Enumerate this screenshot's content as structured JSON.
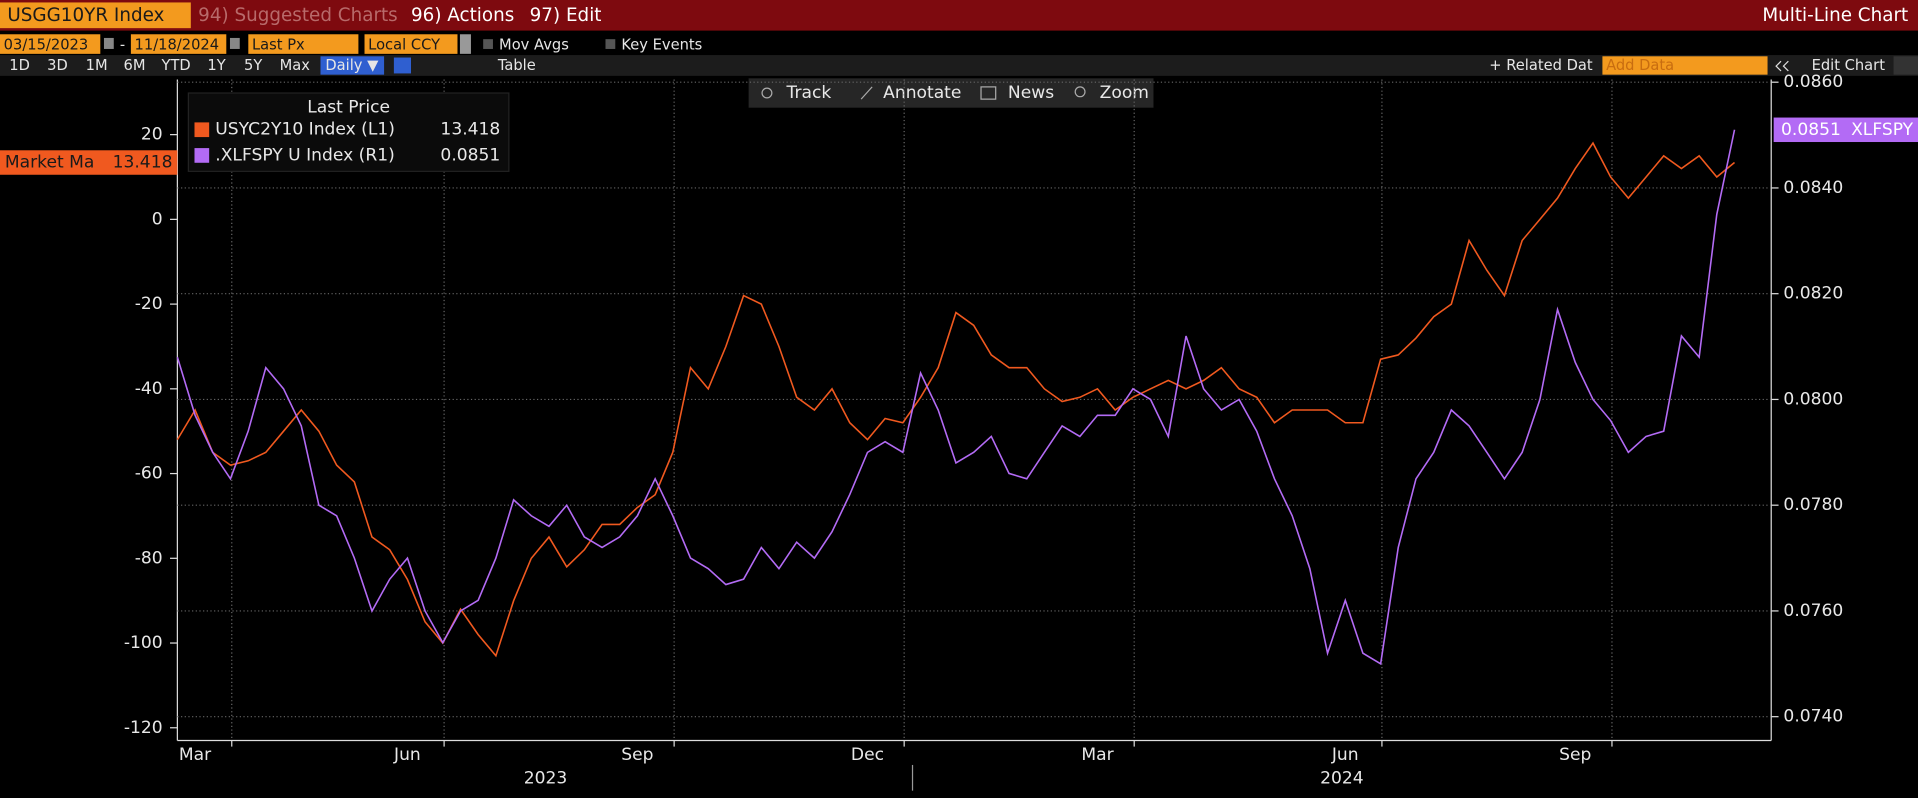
{
  "ui": {
    "top_bar": {
      "security": "USGG10YR Index",
      "menus": [
        "94) Suggested Charts",
        "96) Actions",
        "97) Edit"
      ],
      "view": "Multi-Line Chart"
    },
    "settings_bar": {
      "start_date": "03/15/2023",
      "date_separator": "-",
      "end_date": "11/18/2024",
      "field": "Last Px",
      "currency": "Local CCY",
      "toggles": [
        "Mov Avgs",
        "Key Events"
      ]
    },
    "range_bar": {
      "ranges": [
        "1D",
        "3D",
        "1M",
        "6M",
        "YTD",
        "1Y",
        "5Y",
        "Max"
      ],
      "frequency": "Daily ▼",
      "table": "Table",
      "related": "+ Related Dat",
      "add_data": "Add Data",
      "edit_chart": "Edit Chart"
    },
    "toolbar": [
      "Track",
      "Annotate",
      "News",
      "Zoom"
    ]
  },
  "chart_data": {
    "type": "line",
    "legend_title": "Last Price",
    "legend": "upper left",
    "grid": true,
    "categories": [
      null,
      "Mar",
      null,
      null,
      null,
      null,
      null,
      null,
      null,
      null,
      null,
      null,
      null,
      "Jun",
      null,
      null,
      null,
      null,
      null,
      null,
      null,
      null,
      null,
      null,
      null,
      null,
      "Sep",
      null,
      null,
      null,
      null,
      null,
      null,
      null,
      null,
      null,
      null,
      null,
      null,
      "Dec",
      null,
      null,
      null,
      null,
      null,
      null,
      null,
      null,
      null,
      null,
      null,
      null,
      "Mar",
      null,
      null,
      null,
      null,
      null,
      null,
      null,
      null,
      null,
      null,
      null,
      null,
      null,
      "Jun",
      null,
      null,
      null,
      null,
      null,
      null,
      null,
      null,
      null,
      null,
      null,
      null,
      "Sep",
      null,
      null,
      null,
      null,
      null,
      null,
      null,
      null,
      null
    ],
    "x_group_labels": [
      "2023",
      "2024"
    ],
    "left_badge_label": "Market Ma",
    "right_badge_label": "XLFSPY",
    "series": [
      {
        "name": "USYC2Y10 Index (L1)",
        "color": "#f0591f",
        "axis": "y",
        "values": [
          -52,
          -45,
          -55,
          -58,
          -57,
          -55,
          -50,
          -45,
          -50,
          -58,
          -62,
          -75,
          -78,
          -85,
          -95,
          -100,
          -92,
          -98,
          -103,
          -90,
          -80,
          -75,
          -82,
          -78,
          -72,
          -72,
          -68,
          -65,
          -55,
          -35,
          -40,
          -30,
          -18,
          -20,
          -30,
          -42,
          -45,
          -40,
          -48,
          -52,
          -47,
          -48,
          -42,
          -35,
          -22,
          -25,
          -32,
          -35,
          -35,
          -40,
          -43,
          -42,
          -40,
          -45,
          -42,
          -40,
          -38,
          -40,
          -38,
          -35,
          -40,
          -42,
          -48,
          -45,
          -45,
          -45,
          -48,
          -48,
          -33,
          -32,
          -28,
          -23,
          -20,
          -5,
          -12,
          -18,
          -5,
          0,
          5,
          12,
          18,
          10,
          5,
          10,
          15,
          12,
          15,
          10,
          13.418
        ]
      },
      {
        "name": ".XLFSPY U Index (R1)",
        "color": "#b36bf5",
        "axis": "y2",
        "values": [
          0.0808,
          0.0797,
          0.079,
          0.0785,
          0.0794,
          0.0806,
          0.0802,
          0.0795,
          0.078,
          0.0778,
          0.077,
          0.076,
          0.0766,
          0.077,
          0.076,
          0.0754,
          0.076,
          0.0762,
          0.077,
          0.0781,
          0.0778,
          0.0776,
          0.078,
          0.0774,
          0.0772,
          0.0774,
          0.0778,
          0.0785,
          0.0778,
          0.077,
          0.0768,
          0.0765,
          0.0766,
          0.0772,
          0.0768,
          0.0773,
          0.077,
          0.0775,
          0.0782,
          0.079,
          0.0792,
          0.079,
          0.0805,
          0.0798,
          0.0788,
          0.079,
          0.0793,
          0.0786,
          0.0785,
          0.079,
          0.0795,
          0.0793,
          0.0797,
          0.0797,
          0.0802,
          0.08,
          0.0793,
          0.0812,
          0.0802,
          0.0798,
          0.08,
          0.0794,
          0.0785,
          0.0778,
          0.0768,
          0.0752,
          0.0762,
          0.0752,
          0.075,
          0.0772,
          0.0785,
          0.079,
          0.0798,
          0.0795,
          0.079,
          0.0785,
          0.079,
          0.08,
          0.0817,
          0.0807,
          0.08,
          0.0796,
          0.079,
          0.0793,
          0.0794,
          0.0812,
          0.0808,
          0.0835,
          0.0851
        ]
      }
    ],
    "ylim": [
      -123,
      33
    ],
    "yticks": [
      20,
      0,
      -20,
      -40,
      -60,
      -80,
      -100,
      -120
    ],
    "y2lim": [
      0.07355,
      0.08605
    ],
    "y2ticks": [
      {
        "value": 0.086,
        "label": "0.0860"
      },
      {
        "value": 0.084,
        "label": "0.0840"
      },
      {
        "value": 0.082,
        "label": "0.0820"
      },
      {
        "value": 0.08,
        "label": "0.0800"
      },
      {
        "value": 0.078,
        "label": "0.0780"
      },
      {
        "value": 0.076,
        "label": "0.0760"
      },
      {
        "value": 0.074,
        "label": "0.0740"
      }
    ]
  }
}
